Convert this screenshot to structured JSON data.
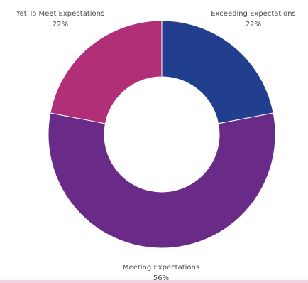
{
  "chart_data": {
    "type": "pie",
    "style": "donut",
    "start_angle_deg": 0,
    "direction": "clockwise",
    "slices": [
      {
        "name": "Exceeding Expectations",
        "value": 22,
        "label": "22%",
        "color": "#223f8f"
      },
      {
        "name": "Meeting Expectations",
        "value": 56,
        "label": "56%",
        "color": "#6a2a87"
      },
      {
        "name": "Yet To Meet Expectations",
        "value": 22,
        "label": "22%",
        "color": "#b12f77"
      }
    ]
  }
}
